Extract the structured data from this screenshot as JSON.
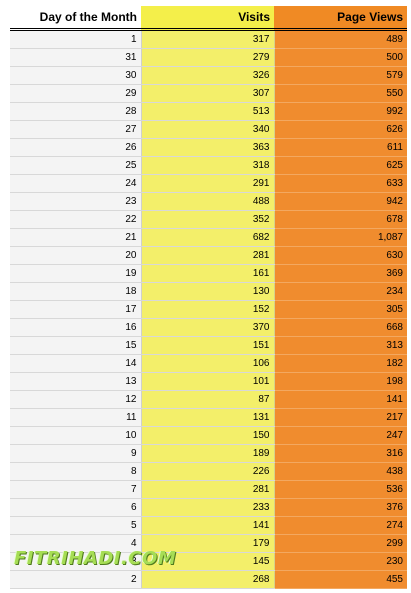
{
  "table": {
    "headers": [
      "Day of the Month",
      "Visits",
      "Page Views"
    ],
    "rows": [
      [
        "1",
        "317",
        "489"
      ],
      [
        "31",
        "279",
        "500"
      ],
      [
        "30",
        "326",
        "579"
      ],
      [
        "29",
        "307",
        "550"
      ],
      [
        "28",
        "513",
        "992"
      ],
      [
        "27",
        "340",
        "626"
      ],
      [
        "26",
        "363",
        "611"
      ],
      [
        "25",
        "318",
        "625"
      ],
      [
        "24",
        "291",
        "633"
      ],
      [
        "23",
        "488",
        "942"
      ],
      [
        "22",
        "352",
        "678"
      ],
      [
        "21",
        "682",
        "1,087"
      ],
      [
        "20",
        "281",
        "630"
      ],
      [
        "19",
        "161",
        "369"
      ],
      [
        "18",
        "130",
        "234"
      ],
      [
        "17",
        "152",
        "305"
      ],
      [
        "16",
        "370",
        "668"
      ],
      [
        "15",
        "151",
        "313"
      ],
      [
        "14",
        "106",
        "182"
      ],
      [
        "13",
        "101",
        "198"
      ],
      [
        "12",
        "87",
        "141"
      ],
      [
        "11",
        "131",
        "217"
      ],
      [
        "10",
        "150",
        "247"
      ],
      [
        "9",
        "189",
        "316"
      ],
      [
        "8",
        "226",
        "438"
      ],
      [
        "7",
        "281",
        "536"
      ],
      [
        "6",
        "233",
        "376"
      ],
      [
        "5",
        "141",
        "274"
      ],
      [
        "4",
        "179",
        "299"
      ],
      [
        "3",
        "145",
        "230"
      ],
      [
        "2",
        "268",
        "455"
      ]
    ]
  },
  "watermark": {
    "text": "FITRIHADI.COM"
  },
  "colors": {
    "visits_column": "#f3ef6a",
    "page_views_column": "#f08c2e",
    "day_column": "#f4f4f4"
  }
}
